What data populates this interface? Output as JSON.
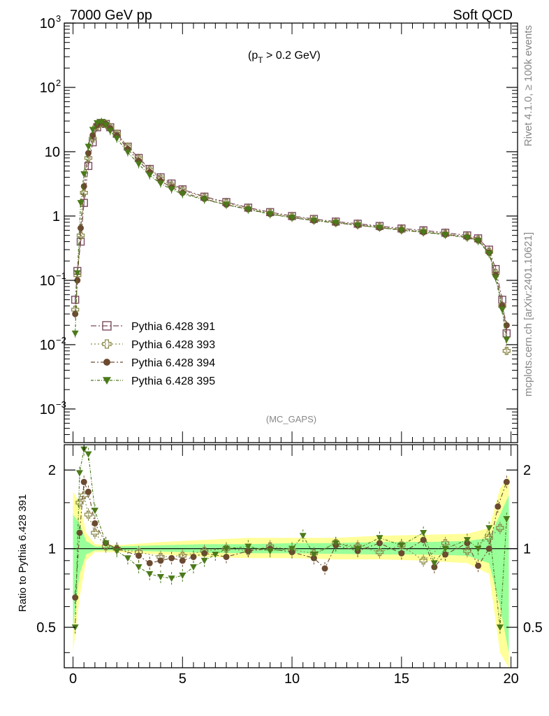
{
  "header": {
    "left": "7000 GeV pp",
    "right": "Soft QCD"
  },
  "cut_label": {
    "pre": "(p",
    "sub": "T",
    "post": " > 0.2 GeV)"
  },
  "watermark": "(MC_GAPS)",
  "side": {
    "events": "Rivet 4.1.0, ≥ 100k events",
    "source": "mcplots.cern.ch [arXiv:2401.10621]"
  },
  "ratio_ylabel": "Ratio to Pythia 6.428 391",
  "colors": {
    "s391": "#7a4b5f",
    "s393": "#8c8a4b",
    "s394": "#6b4a30",
    "s395": "#4b7a1a",
    "band_yellow": "#ffff99",
    "band_green": "#99ff99"
  },
  "chart_data": {
    "main": {
      "type": "scatter",
      "y_scale": "log",
      "xlim": [
        -0.4,
        20.3
      ],
      "ylim": [
        0.0003,
        1000
      ],
      "y_ticks": [
        {
          "value": 0.001,
          "base": "10",
          "exp": "−3"
        },
        {
          "value": 0.01,
          "base": "10",
          "exp": "−2"
        },
        {
          "value": 0.1,
          "base": "10",
          "exp": "−1"
        },
        {
          "value": 1,
          "base": "1",
          "exp": ""
        },
        {
          "value": 10,
          "base": "10",
          "exp": ""
        },
        {
          "value": 100,
          "base": "10",
          "exp": "2"
        },
        {
          "value": 1000,
          "base": "10",
          "exp": "3"
        }
      ],
      "legend": [
        "Pythia 6.428 391",
        "Pythia 6.428 393",
        "Pythia 6.428 394",
        "Pythia 6.428 395"
      ],
      "series": [
        {
          "name": "Pythia 6.428 391",
          "marker": "open-square",
          "x": [
            0.1,
            0.2,
            0.35,
            0.5,
            0.7,
            0.9,
            1.1,
            1.3,
            1.5,
            1.7,
            2.0,
            2.5,
            3.0,
            3.5,
            4.0,
            4.5,
            5.0,
            6.0,
            7.0,
            8.0,
            9.0,
            10.0,
            11.0,
            12.0,
            13.0,
            14.0,
            15.0,
            16.0,
            17.0,
            18.0,
            18.5,
            19.0,
            19.3,
            19.6,
            19.8
          ],
          "y": [
            0.05,
            0.14,
            0.4,
            1.6,
            6.0,
            14.0,
            24.0,
            28.0,
            27.0,
            24.0,
            19.0,
            12.0,
            8.0,
            5.4,
            4.0,
            3.2,
            2.6,
            2.0,
            1.65,
            1.35,
            1.15,
            1.0,
            0.9,
            0.82,
            0.76,
            0.7,
            0.64,
            0.6,
            0.55,
            0.5,
            0.45,
            0.3,
            0.15,
            0.05,
            0.015
          ]
        },
        {
          "name": "Pythia 6.428 393",
          "marker": "open-cross",
          "x": [
            0.1,
            0.2,
            0.35,
            0.5,
            0.7,
            0.9,
            1.1,
            1.3,
            1.5,
            1.7,
            2.0,
            2.5,
            3.0,
            3.5,
            4.0,
            4.5,
            5.0,
            6.0,
            7.0,
            8.0,
            9.0,
            10.0,
            11.0,
            12.0,
            13.0,
            14.0,
            15.0,
            16.0,
            17.0,
            18.0,
            18.5,
            19.0,
            19.3,
            19.6,
            19.8
          ],
          "y": [
            0.035,
            0.12,
            0.5,
            2.3,
            8.0,
            16.0,
            25.0,
            28.0,
            27.0,
            24.0,
            19.0,
            12.0,
            7.8,
            5.2,
            3.8,
            3.0,
            2.5,
            1.95,
            1.6,
            1.32,
            1.12,
            0.98,
            0.88,
            0.8,
            0.74,
            0.68,
            0.62,
            0.58,
            0.53,
            0.48,
            0.43,
            0.28,
            0.13,
            0.04,
            0.008
          ]
        },
        {
          "name": "Pythia 6.428 394",
          "marker": "filled-circle",
          "x": [
            0.1,
            0.2,
            0.35,
            0.5,
            0.7,
            0.9,
            1.1,
            1.3,
            1.5,
            1.7,
            2.0,
            2.5,
            3.0,
            3.5,
            4.0,
            4.5,
            5.0,
            6.0,
            7.0,
            8.0,
            9.0,
            10.0,
            11.0,
            12.0,
            13.0,
            14.0,
            15.0,
            16.0,
            17.0,
            18.0,
            18.5,
            19.0,
            19.3,
            19.6,
            19.8
          ],
          "y": [
            0.03,
            0.1,
            0.65,
            2.9,
            9.5,
            18.0,
            26.0,
            28.5,
            27.0,
            23.0,
            18.0,
            11.0,
            7.2,
            4.8,
            3.5,
            2.8,
            2.3,
            1.85,
            1.5,
            1.28,
            1.08,
            0.95,
            0.85,
            0.78,
            0.72,
            0.66,
            0.61,
            0.56,
            0.52,
            0.47,
            0.42,
            0.27,
            0.12,
            0.04,
            0.02
          ]
        },
        {
          "name": "Pythia 6.428 395",
          "marker": "filled-triangle-down",
          "x": [
            0.1,
            0.2,
            0.35,
            0.5,
            0.7,
            0.9,
            1.1,
            1.3,
            1.5,
            1.7,
            2.0,
            2.5,
            3.0,
            3.5,
            4.0,
            4.5,
            5.0,
            6.0,
            7.0,
            8.0,
            9.0,
            10.0,
            11.0,
            12.0,
            13.0,
            14.0,
            15.0,
            16.0,
            17.0,
            18.0,
            18.5,
            19.0,
            19.3,
            19.6,
            19.8
          ],
          "y": [
            0.015,
            0.13,
            1.6,
            4.5,
            12.0,
            22.0,
            28.0,
            29.0,
            26.0,
            21.0,
            16.0,
            9.8,
            6.4,
            4.3,
            3.2,
            2.6,
            2.2,
            1.8,
            1.5,
            1.26,
            1.07,
            0.94,
            0.85,
            0.79,
            0.72,
            0.66,
            0.6,
            0.56,
            0.51,
            0.46,
            0.41,
            0.26,
            0.11,
            0.035,
            0.012
          ]
        }
      ]
    },
    "ratio": {
      "type": "scatter",
      "y_scale": "log",
      "xlim": [
        -0.4,
        20.3
      ],
      "ylim": [
        0.35,
        2.5
      ],
      "x_ticks": [
        0,
        5,
        10,
        15,
        20
      ],
      "y_ticks": [
        0.5,
        1,
        2
      ],
      "reference": "Pythia 6.428 391",
      "band_x": [
        0.0,
        0.3,
        0.6,
        1.0,
        2.0,
        4.0,
        6.0,
        8.0,
        10.0,
        12.0,
        14.0,
        16.0,
        18.0,
        19.0,
        19.5,
        19.9
      ],
      "band_yellow": [
        [
          0.4,
          1.65
        ],
        [
          0.65,
          1.5
        ],
        [
          0.9,
          1.15
        ],
        [
          0.97,
          1.04
        ],
        [
          0.97,
          1.03
        ],
        [
          0.95,
          1.06
        ],
        [
          0.93,
          1.08
        ],
        [
          0.92,
          1.1
        ],
        [
          0.92,
          1.1
        ],
        [
          0.91,
          1.1
        ],
        [
          0.91,
          1.12
        ],
        [
          0.9,
          1.13
        ],
        [
          0.88,
          1.14
        ],
        [
          0.8,
          1.2
        ],
        [
          0.4,
          1.7
        ],
        [
          0.35,
          1.9
        ]
      ],
      "band_green": [
        [
          0.5,
          1.35
        ],
        [
          0.8,
          1.25
        ],
        [
          0.95,
          1.07
        ],
        [
          0.985,
          1.02
        ],
        [
          0.985,
          1.02
        ],
        [
          0.975,
          1.03
        ],
        [
          0.965,
          1.04
        ],
        [
          0.96,
          1.04
        ],
        [
          0.96,
          1.05
        ],
        [
          0.955,
          1.05
        ],
        [
          0.95,
          1.06
        ],
        [
          0.95,
          1.06
        ],
        [
          0.94,
          1.07
        ],
        [
          0.88,
          1.1
        ],
        [
          0.6,
          1.35
        ],
        [
          0.4,
          1.6
        ]
      ],
      "series": [
        {
          "name": "Pythia 6.428 393",
          "marker": "open-cross",
          "x": [
            0.3,
            0.5,
            0.7,
            1.0,
            1.5,
            2.0,
            3.0,
            4.0,
            5.0,
            6.0,
            7.0,
            8.0,
            9.0,
            10.0,
            11.0,
            12.0,
            13.0,
            14.0,
            15.0,
            16.0,
            17.0,
            18.0,
            19.0,
            19.5
          ],
          "y": [
            1.5,
            1.6,
            1.35,
            1.15,
            1.02,
            1.0,
            0.97,
            0.93,
            0.94,
            0.98,
            1.0,
            0.98,
            1.02,
            0.99,
            0.96,
            1.05,
            1.02,
            0.97,
            1.03,
            0.9,
            1.05,
            0.98,
            1.1,
            1.2
          ]
        },
        {
          "name": "Pythia 6.428 394",
          "marker": "filled-circle",
          "x": [
            0.1,
            0.3,
            0.5,
            0.7,
            1.0,
            1.5,
            2.0,
            3.0,
            3.5,
            4.0,
            4.5,
            5.0,
            5.5,
            6.0,
            7.0,
            8.0,
            9.0,
            10.0,
            11.0,
            11.5,
            12.0,
            13.0,
            14.0,
            15.0,
            16.0,
            16.5,
            17.0,
            18.0,
            18.5,
            19.0,
            19.4,
            19.8
          ],
          "y": [
            0.65,
            1.15,
            1.8,
            1.65,
            1.25,
            1.05,
            1.0,
            0.94,
            0.88,
            0.9,
            0.92,
            0.9,
            0.93,
            0.96,
            0.93,
            0.98,
            1.0,
            0.97,
            0.92,
            0.84,
            1.03,
            0.98,
            1.05,
            0.96,
            1.08,
            0.85,
            0.95,
            1.05,
            0.86,
            1.0,
            1.45,
            1.8
          ]
        },
        {
          "name": "Pythia 6.428 395",
          "marker": "filled-triangle-down",
          "x": [
            0.1,
            0.3,
            0.5,
            0.7,
            1.0,
            1.5,
            2.0,
            2.5,
            3.0,
            3.5,
            4.0,
            4.5,
            5.0,
            5.5,
            6.0,
            6.5,
            7.0,
            8.0,
            9.0,
            10.0,
            10.5,
            11.0,
            12.0,
            13.0,
            14.0,
            15.0,
            16.0,
            16.5,
            17.0,
            18.0,
            18.5,
            19.0,
            19.5,
            19.8
          ],
          "y": [
            0.5,
            1.95,
            2.4,
            2.3,
            1.4,
            1.05,
            0.98,
            0.92,
            0.85,
            0.8,
            0.78,
            0.77,
            0.79,
            0.85,
            0.9,
            0.95,
            1.0,
            1.02,
            0.98,
            1.0,
            1.12,
            0.95,
            1.05,
            1.0,
            1.1,
            1.03,
            1.15,
            0.88,
            1.0,
            1.08,
            1.0,
            1.2,
            0.5,
            1.3
          ]
        }
      ]
    }
  }
}
